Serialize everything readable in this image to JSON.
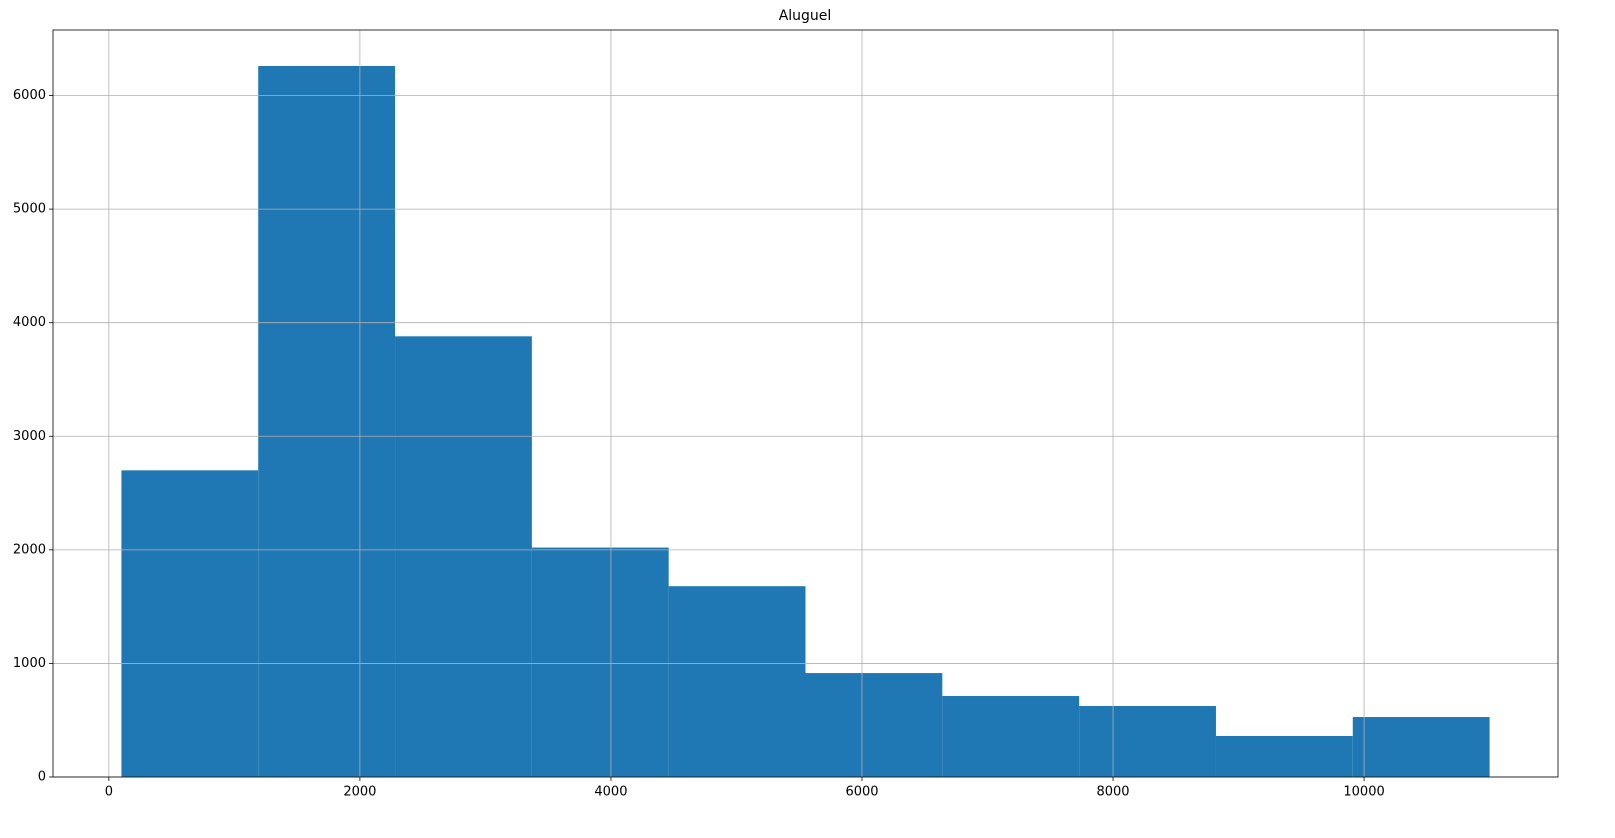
{
  "chart_data": {
    "type": "histogram",
    "title": "Aluguel",
    "bins": [
      100,
      1190,
      2280,
      3370,
      4460,
      5550,
      6640,
      7730,
      8820,
      9910,
      11000
    ],
    "counts": [
      2700,
      6260,
      3880,
      2020,
      1680,
      915,
      713,
      625,
      361,
      528
    ],
    "color": "#1f77b4",
    "xlim": [
      -445,
      11545
    ],
    "xticks": [
      0,
      2000,
      4000,
      6000,
      8000,
      10000
    ],
    "ylim": [
      0,
      6577
    ],
    "yticks": [
      0,
      1000,
      2000,
      3000,
      4000,
      5000,
      6000
    ],
    "grid": true
  }
}
